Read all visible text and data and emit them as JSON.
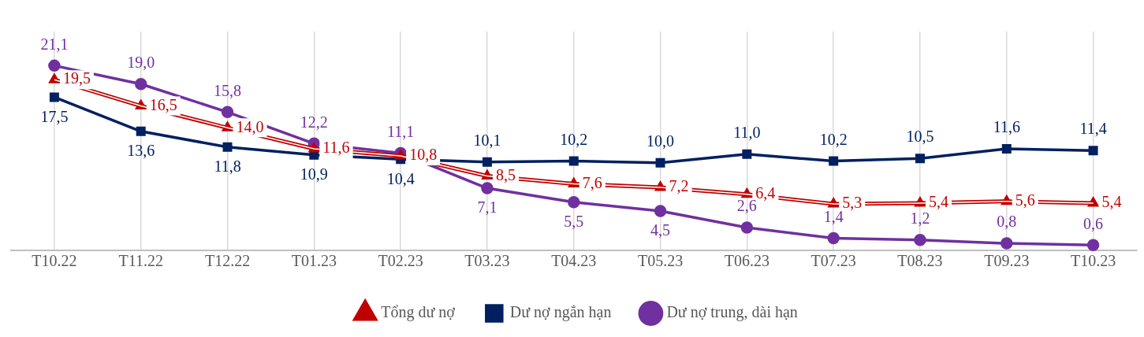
{
  "chart_data": {
    "type": "line",
    "categories": [
      "T10.22",
      "T11.22",
      "T12.22",
      "T01.23",
      "T02.23",
      "T03.23",
      "T04.23",
      "T05.23",
      "T06.23",
      "T07.23",
      "T08.23",
      "T09.23",
      "T10.23"
    ],
    "series": [
      {
        "name": "Tổng dư nợ",
        "color": "#c00000",
        "marker": "triangle",
        "values": [
          19.5,
          16.5,
          14.0,
          11.6,
          10.8,
          8.5,
          7.6,
          7.2,
          6.4,
          5.3,
          5.4,
          5.6,
          5.4
        ],
        "value_labels": [
          "19,5",
          "16,5",
          "14,0",
          "11,6",
          "10,8",
          "8,5",
          "7,6",
          "7,2",
          "6,4",
          "5,3",
          "5,4",
          "5,6",
          "5,4"
        ]
      },
      {
        "name": "Dư nợ ngắn hạn",
        "color": "#002060",
        "marker": "square",
        "values": [
          17.5,
          13.6,
          11.8,
          10.9,
          10.4,
          10.1,
          10.2,
          10.0,
          11.0,
          10.2,
          10.5,
          11.6,
          11.4
        ],
        "value_labels": [
          "17,5",
          "13,6",
          "11,8",
          "10,9",
          "10,4",
          "10,1",
          "10,2",
          "10,0",
          "11,0",
          "10,2",
          "10,5",
          "11,6",
          "11,4"
        ]
      },
      {
        "name": "Dư nợ trung, dài hạn",
        "color": "#7030a0",
        "marker": "circle",
        "values": [
          21.1,
          19.0,
          15.8,
          12.2,
          11.1,
          7.1,
          5.5,
          4.5,
          2.6,
          1.4,
          1.2,
          0.8,
          0.6
        ],
        "value_labels": [
          "21,1",
          "19,0",
          "15,8",
          "12,2",
          "11,1",
          "7,1",
          "5,5",
          "4,5",
          "2,6",
          "1,4",
          "1,2",
          "0,8",
          "0,6"
        ]
      }
    ],
    "tick_labels": "x",
    "grid": "x",
    "legend": "bottom"
  }
}
